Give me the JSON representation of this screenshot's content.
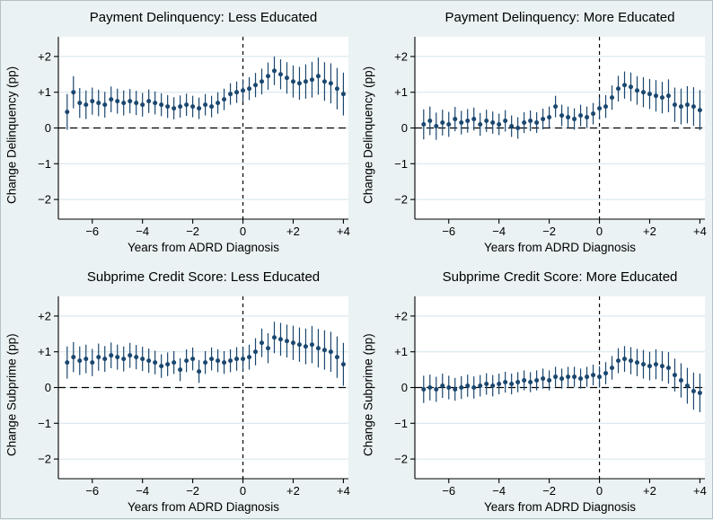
{
  "figure": {
    "background": "#eaf2f3",
    "border_color": "#b3c2c8"
  },
  "colors": {
    "point": "#1a476f",
    "ci_bar": "#1a476f",
    "grid": "#d3e3ea",
    "axis": "#000000",
    "refline": "#000000",
    "plot_bg": "#ffffff"
  },
  "chart_data": [
    {
      "type": "scatter",
      "title": "Payment Delinquency: Less Educated",
      "xlabel": "Years from ADRD Diagnosis",
      "ylabel": "Change Delinquency (pp)",
      "xlim": [
        -7.35,
        4.2
      ],
      "ylim": [
        -2.55,
        2.55
      ],
      "grid": true,
      "xticks": [
        {
          "v": -6,
          "label": "−6"
        },
        {
          "v": -4,
          "label": "−4"
        },
        {
          "v": -2,
          "label": "−2"
        },
        {
          "v": 0,
          "label": "0"
        },
        {
          "v": 2,
          "label": "+2"
        },
        {
          "v": 4,
          "label": "+4"
        }
      ],
      "yticks": [
        {
          "v": 2,
          "label": "+2"
        },
        {
          "v": 1,
          "label": "+1"
        },
        {
          "v": 0,
          "label": "0"
        },
        {
          "v": -1,
          "label": "−1"
        },
        {
          "v": -2,
          "label": "−2"
        }
      ],
      "refline_y": 0,
      "refline_x": 0,
      "x": [
        -7,
        -6.75,
        -6.5,
        -6.25,
        -6,
        -5.75,
        -5.5,
        -5.25,
        -5,
        -4.75,
        -4.5,
        -4.25,
        -4,
        -3.75,
        -3.5,
        -3.25,
        -3,
        -2.75,
        -2.5,
        -2.25,
        -2,
        -1.75,
        -1.5,
        -1.25,
        -1,
        -0.75,
        -0.5,
        -0.25,
        0,
        0.25,
        0.5,
        0.75,
        1,
        1.25,
        1.5,
        1.75,
        2,
        2.25,
        2.5,
        2.75,
        3,
        3.25,
        3.5,
        3.75,
        4
      ],
      "y": [
        0.45,
        1.0,
        0.7,
        0.65,
        0.75,
        0.7,
        0.65,
        0.8,
        0.75,
        0.7,
        0.75,
        0.7,
        0.65,
        0.75,
        0.7,
        0.65,
        0.6,
        0.55,
        0.6,
        0.65,
        0.6,
        0.55,
        0.65,
        0.6,
        0.7,
        0.8,
        0.95,
        1.0,
        1.05,
        1.1,
        1.2,
        1.3,
        1.45,
        1.6,
        1.5,
        1.4,
        1.3,
        1.25,
        1.3,
        1.35,
        1.45,
        1.3,
        1.25,
        1.1,
        0.95
      ],
      "ci": [
        0.5,
        0.45,
        0.42,
        0.4,
        0.38,
        0.37,
        0.36,
        0.36,
        0.35,
        0.35,
        0.34,
        0.34,
        0.33,
        0.33,
        0.32,
        0.32,
        0.32,
        0.31,
        0.31,
        0.31,
        0.3,
        0.3,
        0.3,
        0.3,
        0.3,
        0.3,
        0.3,
        0.3,
        0.31,
        0.32,
        0.34,
        0.36,
        0.38,
        0.4,
        0.42,
        0.44,
        0.45,
        0.46,
        0.48,
        0.5,
        0.52,
        0.54,
        0.56,
        0.58,
        0.6
      ]
    },
    {
      "type": "scatter",
      "title": "Payment Delinquency: More Educated",
      "xlabel": "Years from ADRD Diagnosis",
      "ylabel": "Change Delinquency (pp)",
      "xlim": [
        -7.35,
        4.2
      ],
      "ylim": [
        -2.55,
        2.55
      ],
      "grid": true,
      "xticks": [
        {
          "v": -6,
          "label": "−6"
        },
        {
          "v": -4,
          "label": "−4"
        },
        {
          "v": -2,
          "label": "−2"
        },
        {
          "v": 0,
          "label": "0"
        },
        {
          "v": 2,
          "label": "+2"
        },
        {
          "v": 4,
          "label": "+4"
        }
      ],
      "yticks": [
        {
          "v": 2,
          "label": "+2"
        },
        {
          "v": 1,
          "label": "+1"
        },
        {
          "v": 0,
          "label": "0"
        },
        {
          "v": -1,
          "label": "−1"
        },
        {
          "v": -2,
          "label": "−2"
        }
      ],
      "refline_y": 0,
      "refline_x": 0,
      "x": [
        -7,
        -6.75,
        -6.5,
        -6.25,
        -6,
        -5.75,
        -5.5,
        -5.25,
        -5,
        -4.75,
        -4.5,
        -4.25,
        -4,
        -3.75,
        -3.5,
        -3.25,
        -3,
        -2.75,
        -2.5,
        -2.25,
        -2,
        -1.75,
        -1.5,
        -1.25,
        -1,
        -0.75,
        -0.5,
        -0.25,
        0,
        0.25,
        0.5,
        0.75,
        1,
        1.25,
        1.5,
        1.75,
        2,
        2.25,
        2.5,
        2.75,
        3,
        3.25,
        3.5,
        3.75,
        4
      ],
      "y": [
        0.1,
        0.2,
        0.05,
        0.15,
        0.1,
        0.25,
        0.15,
        0.2,
        0.25,
        0.1,
        0.2,
        0.15,
        0.1,
        0.2,
        0.05,
        0.0,
        0.15,
        0.2,
        0.15,
        0.25,
        0.3,
        0.6,
        0.35,
        0.3,
        0.25,
        0.35,
        0.3,
        0.4,
        0.55,
        0.6,
        0.85,
        1.1,
        1.2,
        1.15,
        1.05,
        1.0,
        0.95,
        0.9,
        0.85,
        0.9,
        0.65,
        0.6,
        0.65,
        0.6,
        0.5
      ],
      "ci": [
        0.42,
        0.4,
        0.38,
        0.36,
        0.35,
        0.34,
        0.33,
        0.33,
        0.32,
        0.32,
        0.31,
        0.31,
        0.3,
        0.3,
        0.3,
        0.3,
        0.29,
        0.29,
        0.29,
        0.29,
        0.3,
        0.3,
        0.3,
        0.3,
        0.3,
        0.3,
        0.3,
        0.3,
        0.31,
        0.32,
        0.34,
        0.36,
        0.38,
        0.4,
        0.4,
        0.42,
        0.42,
        0.44,
        0.44,
        0.46,
        0.48,
        0.5,
        0.52,
        0.54,
        0.56
      ]
    },
    {
      "type": "scatter",
      "title": "Subprime Credit Score: Less Educated",
      "xlabel": "Years from ADRD Diagnosis",
      "ylabel": "Change Subprime (pp)",
      "xlim": [
        -7.35,
        4.2
      ],
      "ylim": [
        -2.55,
        2.55
      ],
      "grid": true,
      "xticks": [
        {
          "v": -6,
          "label": "−6"
        },
        {
          "v": -4,
          "label": "−4"
        },
        {
          "v": -2,
          "label": "−2"
        },
        {
          "v": 0,
          "label": "0"
        },
        {
          "v": 2,
          "label": "+2"
        },
        {
          "v": 4,
          "label": "+4"
        }
      ],
      "yticks": [
        {
          "v": 2,
          "label": "+2"
        },
        {
          "v": 1,
          "label": "+1"
        },
        {
          "v": 0,
          "label": "0"
        },
        {
          "v": -1,
          "label": "−1"
        },
        {
          "v": -2,
          "label": "−2"
        }
      ],
      "refline_y": 0,
      "refline_x": 0,
      "x": [
        -7,
        -6.75,
        -6.5,
        -6.25,
        -6,
        -5.75,
        -5.5,
        -5.25,
        -5,
        -4.75,
        -4.5,
        -4.25,
        -4,
        -3.75,
        -3.5,
        -3.25,
        -3,
        -2.75,
        -2.5,
        -2.25,
        -2,
        -1.75,
        -1.5,
        -1.25,
        -1,
        -0.75,
        -0.5,
        -0.25,
        0,
        0.25,
        0.5,
        0.75,
        1,
        1.25,
        1.5,
        1.75,
        2,
        2.25,
        2.5,
        2.75,
        3,
        3.25,
        3.5,
        3.75,
        4
      ],
      "y": [
        0.7,
        0.85,
        0.75,
        0.8,
        0.7,
        0.85,
        0.8,
        0.9,
        0.85,
        0.8,
        0.9,
        0.85,
        0.8,
        0.75,
        0.7,
        0.6,
        0.65,
        0.7,
        0.5,
        0.75,
        0.8,
        0.45,
        0.7,
        0.8,
        0.75,
        0.7,
        0.75,
        0.8,
        0.8,
        0.85,
        1.0,
        1.25,
        1.1,
        1.4,
        1.35,
        1.3,
        1.25,
        1.2,
        1.15,
        1.2,
        1.1,
        1.05,
        1.0,
        0.85,
        0.65
      ],
      "ci": [
        0.45,
        0.42,
        0.4,
        0.4,
        0.38,
        0.38,
        0.36,
        0.36,
        0.35,
        0.35,
        0.35,
        0.34,
        0.34,
        0.34,
        0.33,
        0.33,
        0.33,
        0.32,
        0.32,
        0.32,
        0.32,
        0.32,
        0.32,
        0.32,
        0.32,
        0.32,
        0.32,
        0.33,
        0.34,
        0.35,
        0.38,
        0.4,
        0.42,
        0.44,
        0.46,
        0.46,
        0.48,
        0.48,
        0.5,
        0.52,
        0.54,
        0.55,
        0.56,
        0.58,
        0.6
      ]
    },
    {
      "type": "scatter",
      "title": "Subprime Credit Score: More Educated",
      "xlabel": "Years from ADRD Diagnosis",
      "ylabel": "Change Subprime (pp)",
      "xlim": [
        -7.35,
        4.2
      ],
      "ylim": [
        -2.55,
        2.55
      ],
      "grid": true,
      "xticks": [
        {
          "v": -6,
          "label": "−6"
        },
        {
          "v": -4,
          "label": "−4"
        },
        {
          "v": -2,
          "label": "−2"
        },
        {
          "v": 0,
          "label": "0"
        },
        {
          "v": 2,
          "label": "+2"
        },
        {
          "v": 4,
          "label": "+4"
        }
      ],
      "yticks": [
        {
          "v": 2,
          "label": "+2"
        },
        {
          "v": 1,
          "label": "+1"
        },
        {
          "v": 0,
          "label": "0"
        },
        {
          "v": -1,
          "label": "−1"
        },
        {
          "v": -2,
          "label": "−2"
        }
      ],
      "refline_y": 0,
      "refline_x": 0,
      "x": [
        -7,
        -6.75,
        -6.5,
        -6.25,
        -6,
        -5.75,
        -5.5,
        -5.25,
        -5,
        -4.75,
        -4.5,
        -4.25,
        -4,
        -3.75,
        -3.5,
        -3.25,
        -3,
        -2.75,
        -2.5,
        -2.25,
        -2,
        -1.75,
        -1.5,
        -1.25,
        -1,
        -0.75,
        -0.5,
        -0.25,
        0,
        0.25,
        0.5,
        0.75,
        1,
        1.25,
        1.5,
        1.75,
        2,
        2.25,
        2.5,
        2.75,
        3,
        3.25,
        3.5,
        3.75,
        4
      ],
      "y": [
        -0.05,
        0.0,
        -0.05,
        0.05,
        0.0,
        -0.05,
        0.0,
        0.05,
        0.0,
        0.05,
        0.1,
        0.05,
        0.1,
        0.15,
        0.1,
        0.15,
        0.2,
        0.15,
        0.2,
        0.25,
        0.2,
        0.3,
        0.25,
        0.3,
        0.3,
        0.25,
        0.3,
        0.35,
        0.3,
        0.4,
        0.55,
        0.75,
        0.8,
        0.75,
        0.7,
        0.65,
        0.6,
        0.65,
        0.6,
        0.55,
        0.35,
        0.2,
        0.05,
        -0.1,
        -0.15
      ],
      "ci": [
        0.38,
        0.36,
        0.35,
        0.34,
        0.33,
        0.32,
        0.32,
        0.31,
        0.31,
        0.3,
        0.3,
        0.3,
        0.29,
        0.29,
        0.29,
        0.28,
        0.28,
        0.28,
        0.28,
        0.28,
        0.28,
        0.28,
        0.28,
        0.28,
        0.28,
        0.28,
        0.28,
        0.29,
        0.3,
        0.31,
        0.33,
        0.35,
        0.36,
        0.38,
        0.38,
        0.4,
        0.4,
        0.42,
        0.42,
        0.44,
        0.46,
        0.48,
        0.5,
        0.52,
        0.54
      ]
    }
  ]
}
